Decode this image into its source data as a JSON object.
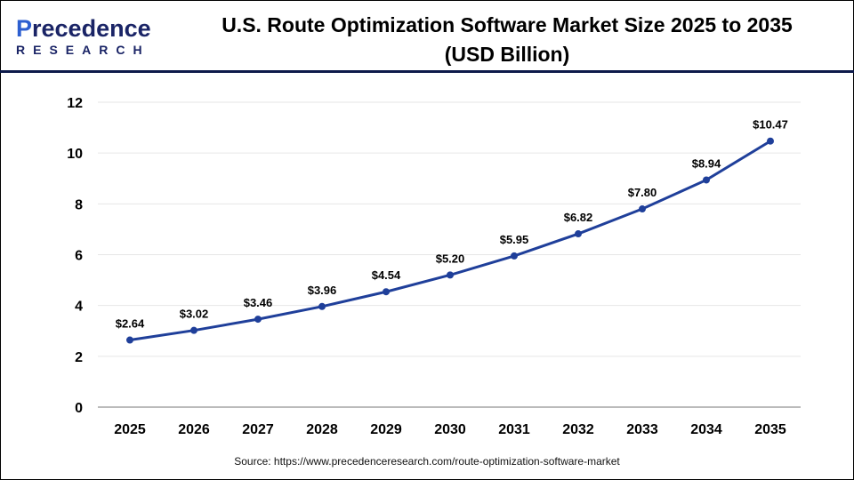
{
  "logo": {
    "line1_a": "P",
    "line1_b": "recedence",
    "line2": "RESEARCH"
  },
  "source": "Source: https://www.precedenceresearch.com/route-optimization-software-market",
  "colors": {
    "line": "#1f3f9a",
    "header_rule": "#0d1a4a",
    "grid": "#e6e6e6"
  },
  "chart_data": {
    "type": "line",
    "title": "U.S. Route Optimization Software Market Size 2025 to 2035",
    "subtitle": "(USD Billion)",
    "categories": [
      "2025",
      "2026",
      "2027",
      "2028",
      "2029",
      "2030",
      "2031",
      "2032",
      "2033",
      "2034",
      "2035"
    ],
    "values": [
      2.64,
      3.02,
      3.46,
      3.96,
      4.54,
      5.2,
      5.95,
      6.82,
      7.8,
      8.94,
      10.47
    ],
    "data_labels": [
      "$2.64",
      "$3.02",
      "$3.46",
      "$3.96",
      "$4.54",
      "$5.20",
      "$5.95",
      "$6.82",
      "$7.80",
      "$8.94",
      "$10.47"
    ],
    "yticks": [
      "0",
      "2",
      "4",
      "6",
      "8",
      "10",
      "12"
    ],
    "ylim": [
      0,
      12
    ],
    "grid": true,
    "legend": "none"
  }
}
